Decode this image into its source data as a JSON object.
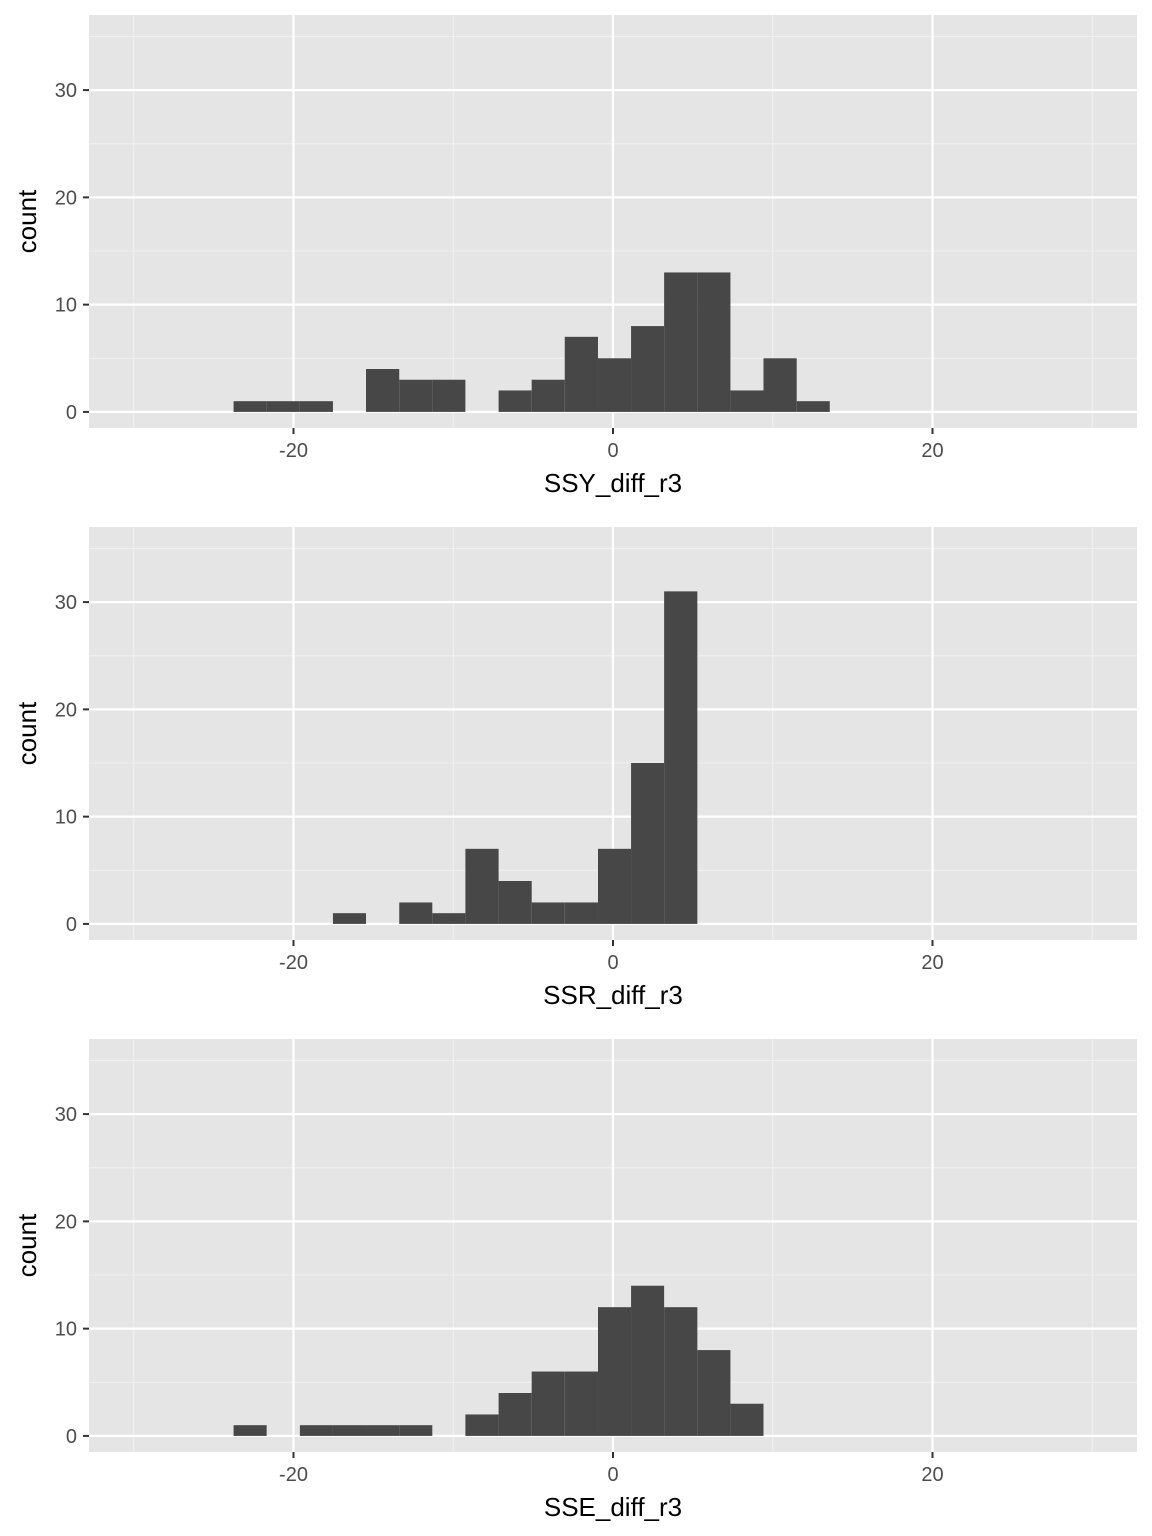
{
  "colors": {
    "panel_background": "#e5e5e5",
    "grid_major": "#ffffff",
    "grid_minor": "#f0f0f0",
    "bar_fill": "#474747",
    "tick_text": "#4d4d4d",
    "axis_title_text": "#000000"
  },
  "chart_data": [
    {
      "type": "histogram",
      "xlabel": "SSY_diff_r3",
      "ylabel": "count",
      "xlim": [
        -32.8,
        32.8
      ],
      "ylim": [
        -1.5,
        37
      ],
      "x_ticks": [
        -20,
        0,
        20
      ],
      "x_tick_labels": [
        "-20",
        "0",
        "20"
      ],
      "y_ticks": [
        0,
        10,
        20,
        30
      ],
      "y_tick_labels": [
        "0",
        "10",
        "20",
        "30"
      ],
      "grid": true,
      "bins": [
        {
          "x0": -23.75,
          "x1": -21.68,
          "count": 1
        },
        {
          "x0": -21.68,
          "x1": -19.6,
          "count": 1
        },
        {
          "x0": -19.6,
          "x1": -17.53,
          "count": 1
        },
        {
          "x0": -15.46,
          "x1": -13.38,
          "count": 4
        },
        {
          "x0": -13.38,
          "x1": -11.31,
          "count": 3
        },
        {
          "x0": -11.31,
          "x1": -9.24,
          "count": 3
        },
        {
          "x0": -7.16,
          "x1": -5.09,
          "count": 2
        },
        {
          "x0": -5.09,
          "x1": -3.02,
          "count": 3
        },
        {
          "x0": -3.02,
          "x1": -0.94,
          "count": 7
        },
        {
          "x0": -0.94,
          "x1": 1.13,
          "count": 5
        },
        {
          "x0": 1.13,
          "x1": 3.2,
          "count": 8
        },
        {
          "x0": 3.2,
          "x1": 5.28,
          "count": 13
        },
        {
          "x0": 5.28,
          "x1": 7.35,
          "count": 13
        },
        {
          "x0": 7.35,
          "x1": 9.42,
          "count": 2
        },
        {
          "x0": 9.42,
          "x1": 11.5,
          "count": 5
        },
        {
          "x0": 11.5,
          "x1": 13.57,
          "count": 1
        }
      ]
    },
    {
      "type": "histogram",
      "xlabel": "SSR_diff_r3",
      "ylabel": "count",
      "xlim": [
        -32.8,
        32.8
      ],
      "ylim": [
        -1.5,
        37
      ],
      "x_ticks": [
        -20,
        0,
        20
      ],
      "x_tick_labels": [
        "-20",
        "0",
        "20"
      ],
      "y_ticks": [
        0,
        10,
        20,
        30
      ],
      "y_tick_labels": [
        "0",
        "10",
        "20",
        "30"
      ],
      "grid": true,
      "bins": [
        {
          "x0": -17.53,
          "x1": -15.46,
          "count": 1
        },
        {
          "x0": -13.38,
          "x1": -11.31,
          "count": 2
        },
        {
          "x0": -11.31,
          "x1": -9.24,
          "count": 1
        },
        {
          "x0": -9.24,
          "x1": -7.16,
          "count": 7
        },
        {
          "x0": -7.16,
          "x1": -5.09,
          "count": 4
        },
        {
          "x0": -5.09,
          "x1": -3.02,
          "count": 2
        },
        {
          "x0": -3.02,
          "x1": -0.94,
          "count": 2
        },
        {
          "x0": -0.94,
          "x1": 1.13,
          "count": 7
        },
        {
          "x0": 1.13,
          "x1": 3.2,
          "count": 15
        },
        {
          "x0": 3.2,
          "x1": 5.28,
          "count": 31
        }
      ]
    },
    {
      "type": "histogram",
      "xlabel": "SSE_diff_r3",
      "ylabel": "count",
      "xlim": [
        -32.8,
        32.8
      ],
      "ylim": [
        -1.5,
        37
      ],
      "x_ticks": [
        -20,
        0,
        20
      ],
      "x_tick_labels": [
        "-20",
        "0",
        "20"
      ],
      "y_ticks": [
        0,
        10,
        20,
        30
      ],
      "y_tick_labels": [
        "0",
        "10",
        "20",
        "30"
      ],
      "grid": true,
      "bins": [
        {
          "x0": -23.75,
          "x1": -21.68,
          "count": 1
        },
        {
          "x0": -19.6,
          "x1": -17.53,
          "count": 1
        },
        {
          "x0": -17.53,
          "x1": -15.46,
          "count": 1
        },
        {
          "x0": -15.46,
          "x1": -13.38,
          "count": 1
        },
        {
          "x0": -13.38,
          "x1": -11.31,
          "count": 1
        },
        {
          "x0": -9.24,
          "x1": -7.16,
          "count": 2
        },
        {
          "x0": -7.16,
          "x1": -5.09,
          "count": 4
        },
        {
          "x0": -5.09,
          "x1": -3.02,
          "count": 6
        },
        {
          "x0": -3.02,
          "x1": -0.94,
          "count": 6
        },
        {
          "x0": -0.94,
          "x1": 1.13,
          "count": 12
        },
        {
          "x0": 1.13,
          "x1": 3.2,
          "count": 14
        },
        {
          "x0": 3.2,
          "x1": 5.28,
          "count": 12
        },
        {
          "x0": 5.28,
          "x1": 7.35,
          "count": 8
        },
        {
          "x0": 7.35,
          "x1": 9.42,
          "count": 3
        }
      ]
    }
  ]
}
